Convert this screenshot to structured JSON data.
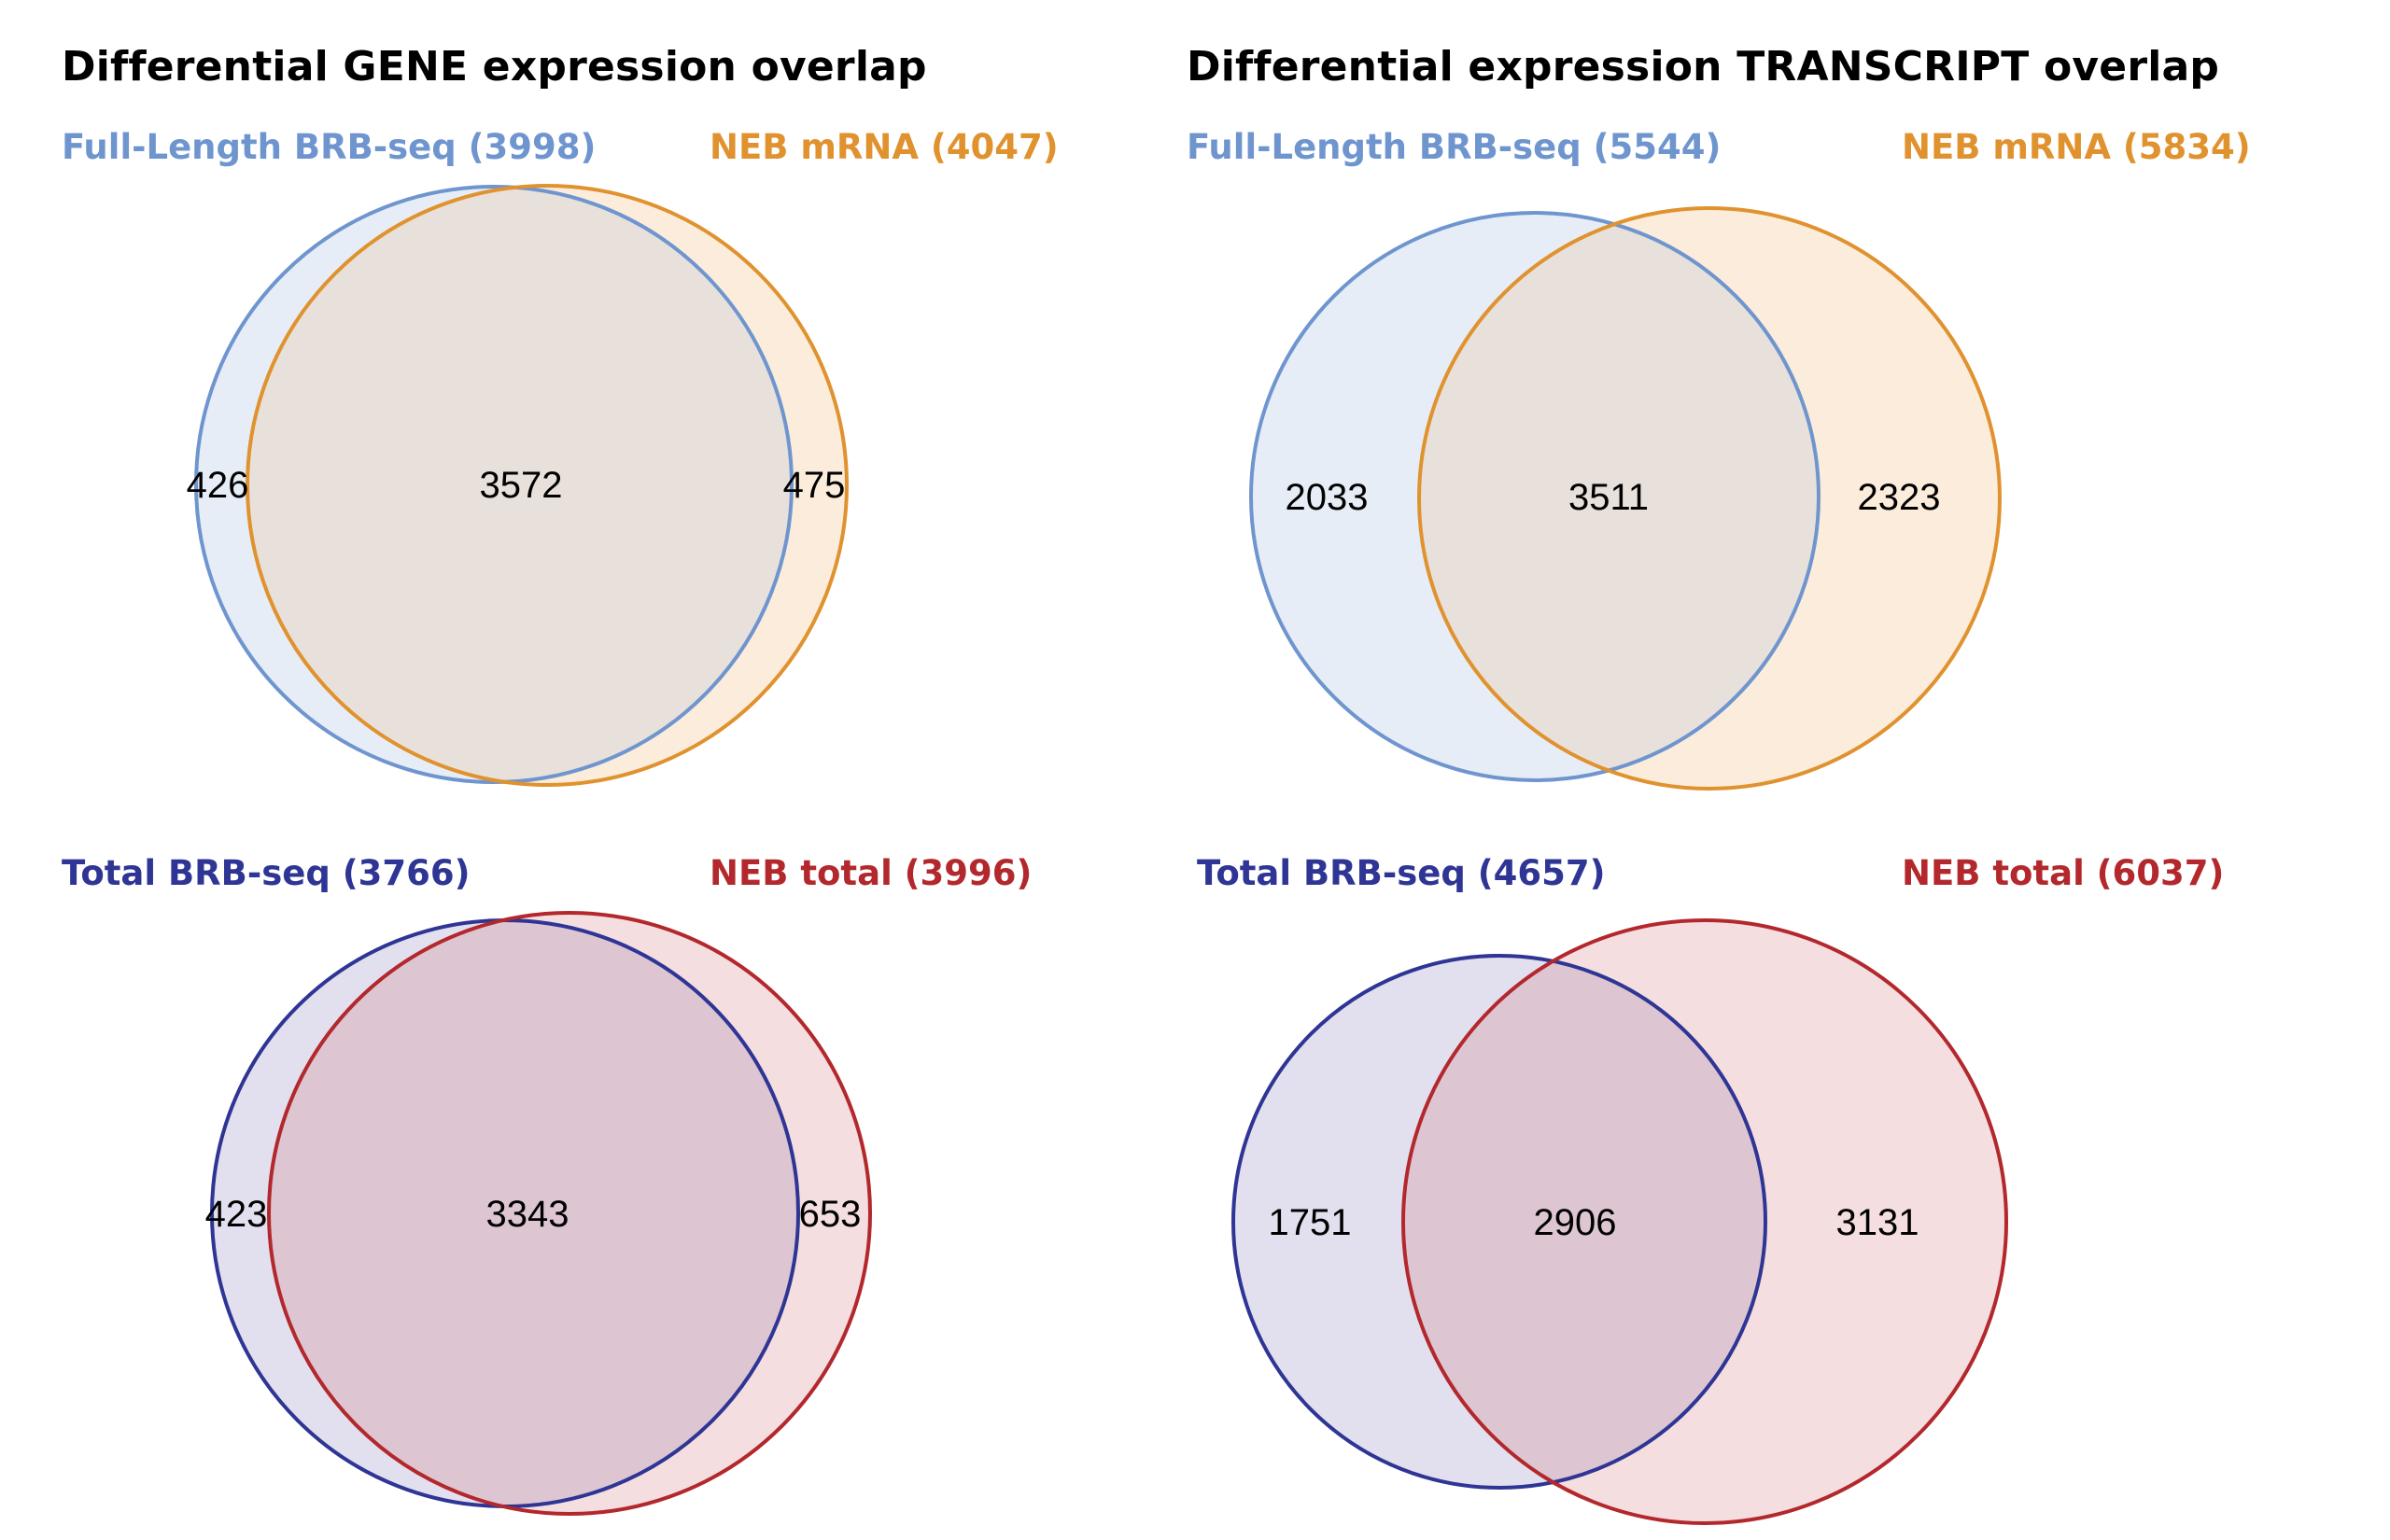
{
  "panels": [
    {
      "title": "Differential GENE expression overlap",
      "set_a": {
        "label": "Full-Length BRB-seq (3998)",
        "color": "#6f95cf",
        "fill": "#e6edf6"
      },
      "set_b": {
        "label": "NEB mRNA (4047)",
        "color": "#e0922f",
        "fill": "#fbecdc"
      },
      "overlap_fill": "#e8e0da",
      "counts": {
        "a_only": "426",
        "both": "3572",
        "b_only": "475"
      }
    },
    {
      "title": "Differential expression TRANSCRIPT overlap",
      "set_a": {
        "label": "Full-Length BRB-seq (5544)",
        "color": "#6f95cf",
        "fill": "#e6edf6"
      },
      "set_b": {
        "label": "NEB mRNA (5834)",
        "color": "#e0922f",
        "fill": "#fbecdc"
      },
      "overlap_fill": "#e8e0da",
      "counts": {
        "a_only": "2033",
        "both": "3511",
        "b_only": "2323"
      }
    },
    {
      "title": "",
      "set_a": {
        "label": "Total BRB-seq (3766)",
        "color": "#2e3594",
        "fill": "#e2e0ee"
      },
      "set_b": {
        "label": "NEB total (3996)",
        "color": "#b3282d",
        "fill": "#f4dedf"
      },
      "overlap_fill": "#ddc6d2",
      "counts": {
        "a_only": "423",
        "both": "3343",
        "b_only": "653"
      }
    },
    {
      "title": "",
      "set_a": {
        "label": "Total BRB-seq (4657)",
        "color": "#2e3594",
        "fill": "#e2e0ee"
      },
      "set_b": {
        "label": "NEB total (6037)",
        "color": "#b3282d",
        "fill": "#f4dedf"
      },
      "overlap_fill": "#ddc6d2",
      "counts": {
        "a_only": "1751",
        "both": "2906",
        "b_only": "3131"
      }
    }
  ]
}
